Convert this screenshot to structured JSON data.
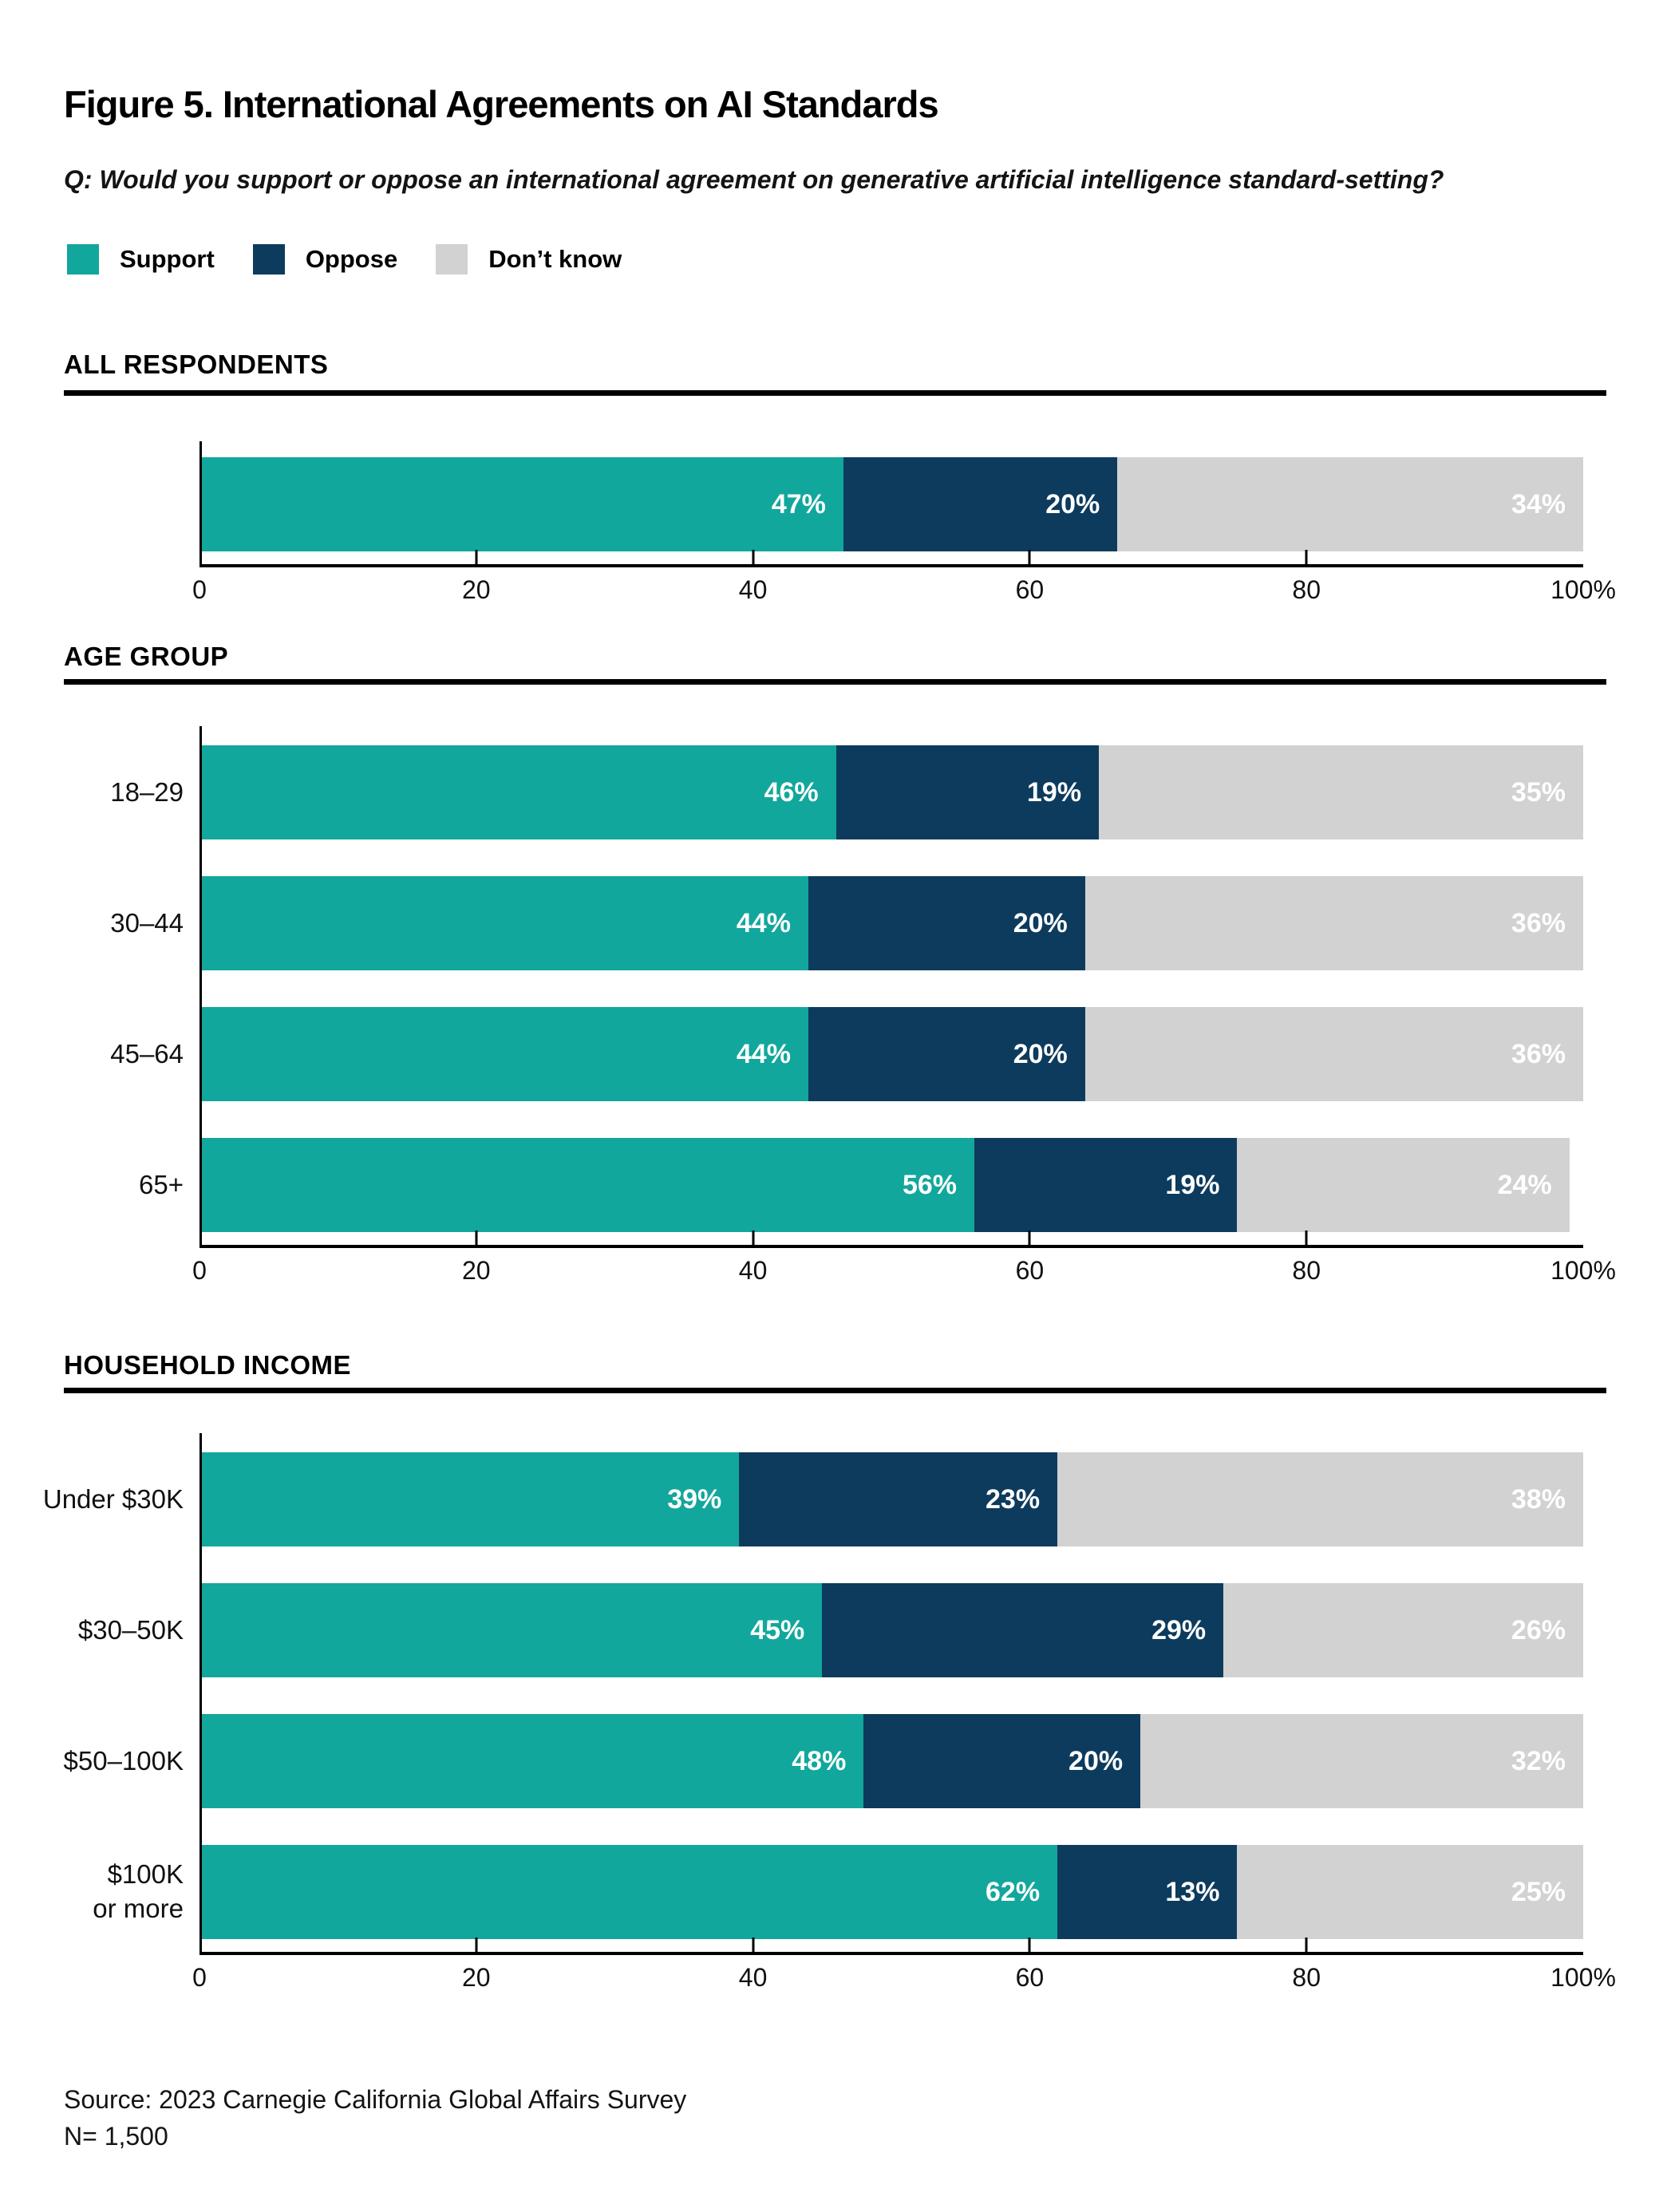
{
  "title": "Figure 5. International Agreements on AI Standards",
  "question": "Q: Would you support or oppose an international agreement on generative artificial intelligence standard-setting?",
  "colors": {
    "support": "#12A79C",
    "oppose": "#0D3B5D",
    "dont_know": "#D2D2D2"
  },
  "legend": [
    {
      "label": "Support",
      "key": "support"
    },
    {
      "label": "Oppose",
      "key": "oppose"
    },
    {
      "label": "Don’t know",
      "key": "dont_know"
    }
  ],
  "axis": {
    "xlim": [
      0,
      100
    ],
    "tick_values": [
      0,
      20,
      40,
      60,
      80,
      100
    ],
    "tick_labels": [
      "0",
      "20",
      "40",
      "60",
      "80",
      "100%"
    ],
    "minor_tick_values": [
      20,
      40,
      60,
      80
    ],
    "grid": false
  },
  "chart_data": [
    {
      "type": "bar",
      "orientation": "horizontal",
      "stacked": true,
      "section": "ALL RESPONDENTS",
      "categories": [
        ""
      ],
      "series": [
        {
          "name": "Support",
          "values": [
            47
          ]
        },
        {
          "name": "Oppose",
          "values": [
            20
          ]
        },
        {
          "name": "Don’t know",
          "values": [
            34
          ]
        }
      ],
      "xlim": [
        0,
        100
      ]
    },
    {
      "type": "bar",
      "orientation": "horizontal",
      "stacked": true,
      "section": "AGE GROUP",
      "categories": [
        "18–29",
        "30–44",
        "45–64",
        "65+"
      ],
      "series": [
        {
          "name": "Support",
          "values": [
            46,
            44,
            44,
            56
          ]
        },
        {
          "name": "Oppose",
          "values": [
            19,
            20,
            20,
            19
          ]
        },
        {
          "name": "Don’t know",
          "values": [
            35,
            36,
            36,
            24
          ]
        }
      ],
      "xlim": [
        0,
        100
      ]
    },
    {
      "type": "bar",
      "orientation": "horizontal",
      "stacked": true,
      "section": "HOUSEHOLD INCOME",
      "categories": [
        "Under $30K",
        "$30–50K",
        "$50–100K",
        "$100K\nor more"
      ],
      "series": [
        {
          "name": "Support",
          "values": [
            39,
            45,
            48,
            62
          ]
        },
        {
          "name": "Oppose",
          "values": [
            23,
            29,
            20,
            13
          ]
        },
        {
          "name": "Don’t know",
          "values": [
            38,
            26,
            32,
            25
          ]
        }
      ],
      "xlim": [
        0,
        100
      ]
    }
  ],
  "source": {
    "line1": "Source: 2023 Carnegie California Global Affairs Survey",
    "line2": "N= 1,500"
  }
}
